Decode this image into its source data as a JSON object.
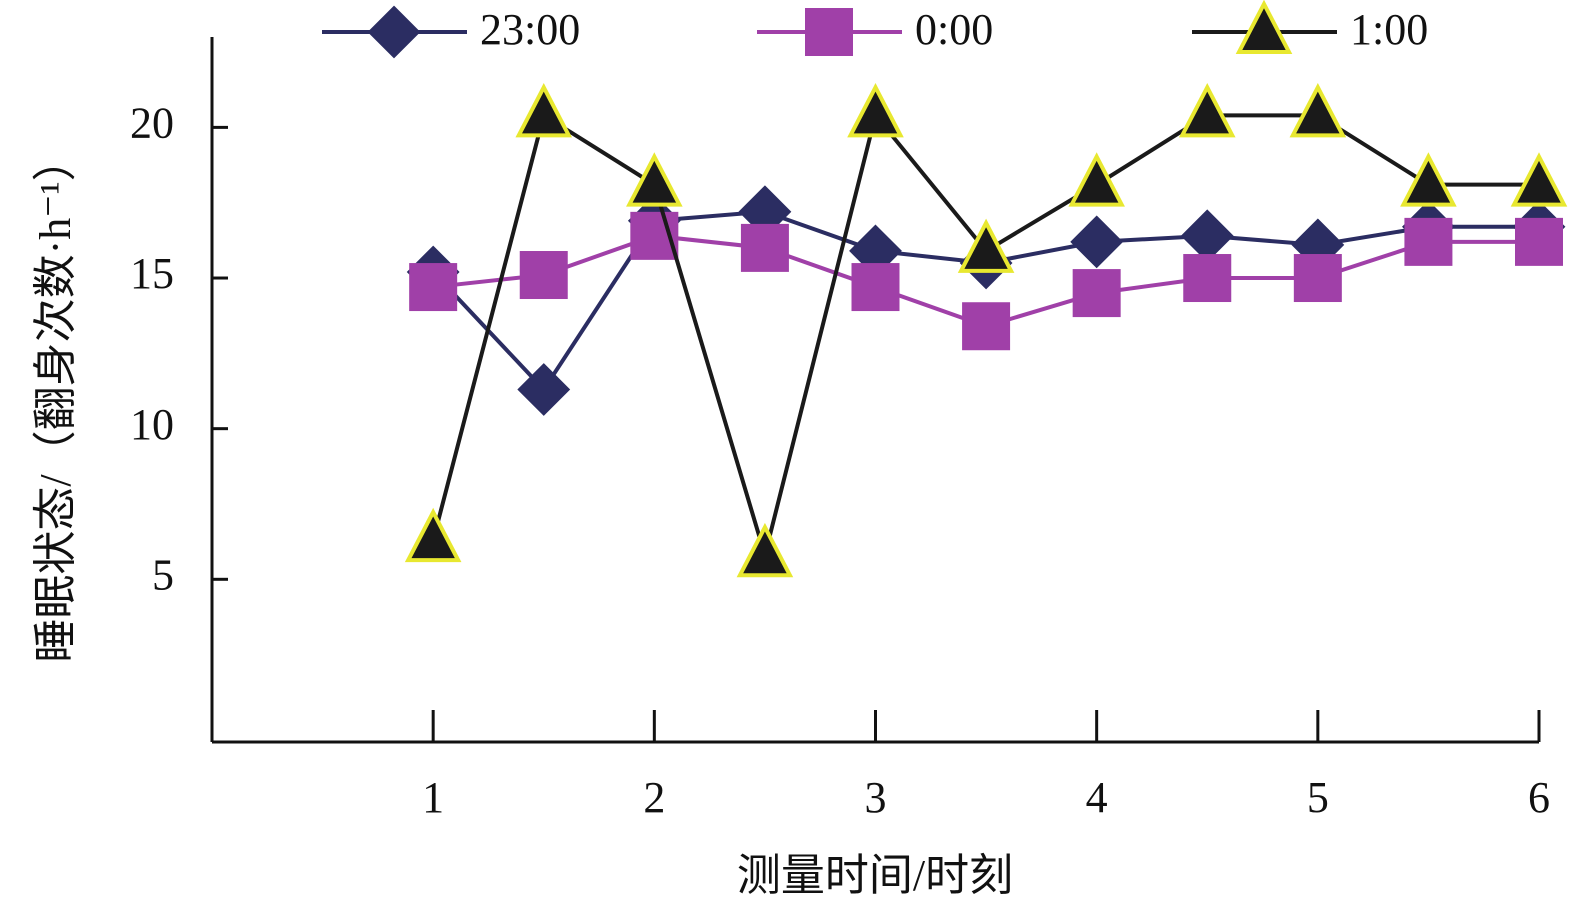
{
  "chart_data": {
    "type": "line",
    "x_label": "测量时间/时刻",
    "y_label": "睡眠状态/（翻身次数·h⁻¹）",
    "x": [
      1,
      1.5,
      2,
      2.5,
      3,
      3.5,
      4,
      4.5,
      5,
      5.5,
      6
    ],
    "xlim": [
      0,
      6
    ],
    "xticks": [
      1,
      2,
      3,
      4,
      5,
      6
    ],
    "ylim": [
      -0.4,
      23
    ],
    "yticks": [
      5,
      10,
      15,
      20
    ],
    "legend": "top",
    "series": [
      {
        "name": "23:00",
        "color": "#2b2d62",
        "marker": "diamond",
        "values": [
          15.2,
          11.3,
          16.9,
          17.2,
          15.9,
          15.5,
          16.2,
          16.4,
          16.1,
          16.7,
          16.7
        ]
      },
      {
        "name": "0:00",
        "color": "#a040a8",
        "marker": "square",
        "values": [
          14.7,
          15.1,
          16.4,
          16.0,
          14.7,
          13.4,
          14.5,
          15.0,
          15.0,
          16.2,
          16.2
        ]
      },
      {
        "name": "1:00",
        "color": "#1a1a1a",
        "marker": "triangle",
        "marker_edge": "#e8e830",
        "values": [
          6.3,
          20.4,
          18.1,
          5.8,
          20.4,
          15.9,
          18.1,
          20.4,
          20.4,
          18.1,
          18.1
        ]
      }
    ]
  }
}
